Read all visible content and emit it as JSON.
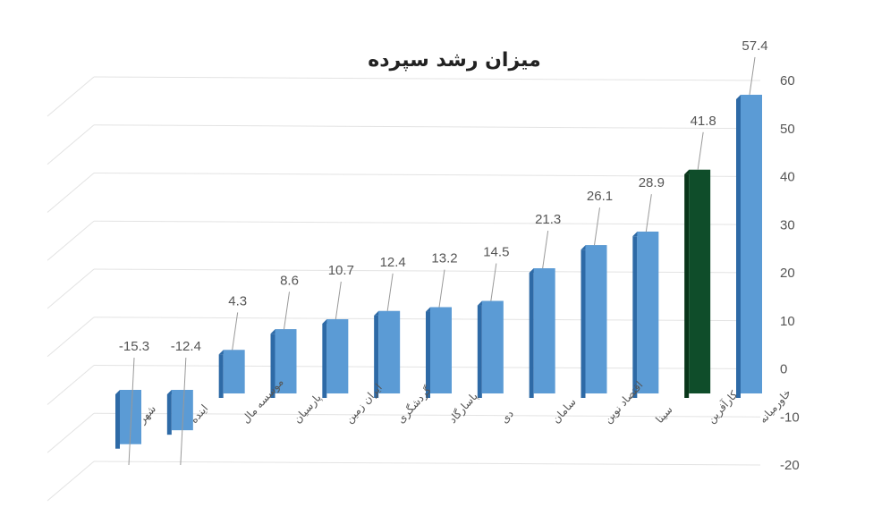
{
  "chart_data": {
    "type": "bar",
    "title": "میزان رشد سپرده",
    "categories": [
      "شهر",
      "اینده",
      "موسسه مال",
      "پارسیان",
      "ایران زمین",
      "گردشگری",
      "پاسارگاد",
      "دی",
      "سامان",
      "اقتصاد نوین",
      "سینا",
      "کارآفرین",
      "خاورمیانه"
    ],
    "values": [
      -15.3,
      -12.4,
      4.3,
      8.6,
      10.7,
      12.4,
      13.2,
      14.5,
      21.3,
      26.1,
      28.9,
      41.8,
      57.4
    ],
    "data_labels": [
      "-15.3",
      "-12.4",
      "4.3",
      "8.6",
      "10.7",
      "12.4",
      "13.2",
      "14.5",
      "21.3",
      "26.1",
      "28.9",
      "41.8",
      "57.4"
    ],
    "ylim": [
      -20,
      60
    ],
    "yticks": [
      "-20",
      "-10",
      "0",
      "10",
      "20",
      "30",
      "40",
      "50",
      "60"
    ],
    "ytick_values": [
      -20,
      -10,
      0,
      10,
      20,
      30,
      40,
      50,
      60
    ],
    "y_axis_side": "right",
    "grid": true,
    "style": "3d-column",
    "colors": {
      "bar": "#5b9bd5",
      "bar_dark": "#2e6aa6",
      "highlight": "#0f4d2a",
      "highlight_dark": "#083519",
      "grid": "#e3e3e3",
      "leader": "#999999"
    },
    "highlight_index": 11
  }
}
